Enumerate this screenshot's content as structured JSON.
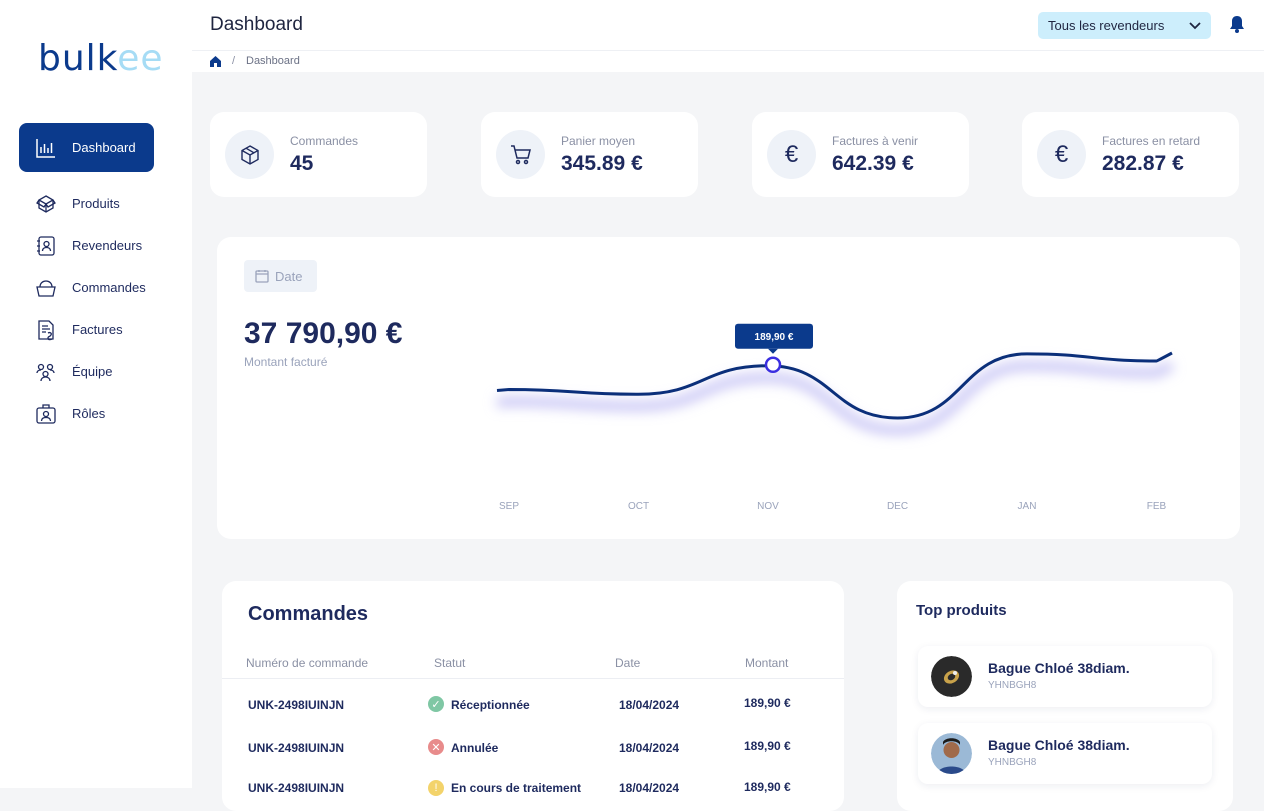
{
  "brand": {
    "logo_main": "bulk",
    "logo_accent": "ee"
  },
  "sidebar": {
    "items": [
      {
        "label": "Dashboard",
        "icon": "chart-icon"
      },
      {
        "label": "Produits",
        "icon": "box-icon"
      },
      {
        "label": "Revendeurs",
        "icon": "contact-icon"
      },
      {
        "label": "Commandes",
        "icon": "basket-icon"
      },
      {
        "label": "Factures",
        "icon": "invoice-icon"
      },
      {
        "label": "Équipe",
        "icon": "team-icon"
      },
      {
        "label": "Rôles",
        "icon": "badge-icon"
      }
    ]
  },
  "header": {
    "title": "Dashboard",
    "reseller_select": "Tous les revendeurs"
  },
  "breadcrumb": {
    "separator": "/",
    "current": "Dashboard"
  },
  "stats": [
    {
      "label": "Commandes",
      "value": "45",
      "icon": "box-icon"
    },
    {
      "label": "Panier moyen",
      "value": "345.89 €",
      "icon": "cart-icon"
    },
    {
      "label": "Factures à venir",
      "value": "642.39 €",
      "icon": "euro-icon"
    },
    {
      "label": "Factures en retard",
      "value": "282.87 €",
      "icon": "euro-icon"
    }
  ],
  "revenue": {
    "date_button": "Date",
    "amount": "37 790,90 €",
    "amount_label": "Montant facturé"
  },
  "chart_data": {
    "type": "line",
    "categories": [
      "SEP",
      "OCT",
      "NOV",
      "DEC",
      "JAN",
      "FEB"
    ],
    "series": [
      {
        "values": [
          180,
          178,
          190,
          168,
          195,
          192
        ]
      }
    ],
    "tooltip": {
      "category": "NOV",
      "label": "189,90 €"
    },
    "grid": false
  },
  "orders": {
    "title": "Commandes",
    "columns": [
      "Numéro de commande",
      "Statut",
      "Date",
      "Montant"
    ],
    "rows": [
      {
        "number": "UNK-2498IUINJN",
        "status": "Réceptionnée",
        "date": "18/04/2024",
        "amount": "189,90 €",
        "status_color": "#7fc7a4"
      },
      {
        "number": "UNK-2498IUINJN",
        "status": "Annulée",
        "date": "18/04/2024",
        "amount": "189,90 €",
        "status_color": "#e88b8b"
      },
      {
        "number": "UNK-2498IUINJN",
        "status": "En cours de traitement",
        "date": "18/04/2024",
        "amount": "189,90 €",
        "status_color": "#f3d36b"
      }
    ]
  },
  "top_products": {
    "title": "Top produits",
    "items": [
      {
        "name": "Bague Chloé 38diam.",
        "sku": "YHNBGH8"
      },
      {
        "name": "Bague Chloé 38diam.",
        "sku": "YHNBGH8"
      }
    ]
  },
  "colors": {
    "primary": "#0b3a8c",
    "accent": "#a6dcf5",
    "text": "#1e2a5e",
    "muted": "#8a90a4"
  }
}
